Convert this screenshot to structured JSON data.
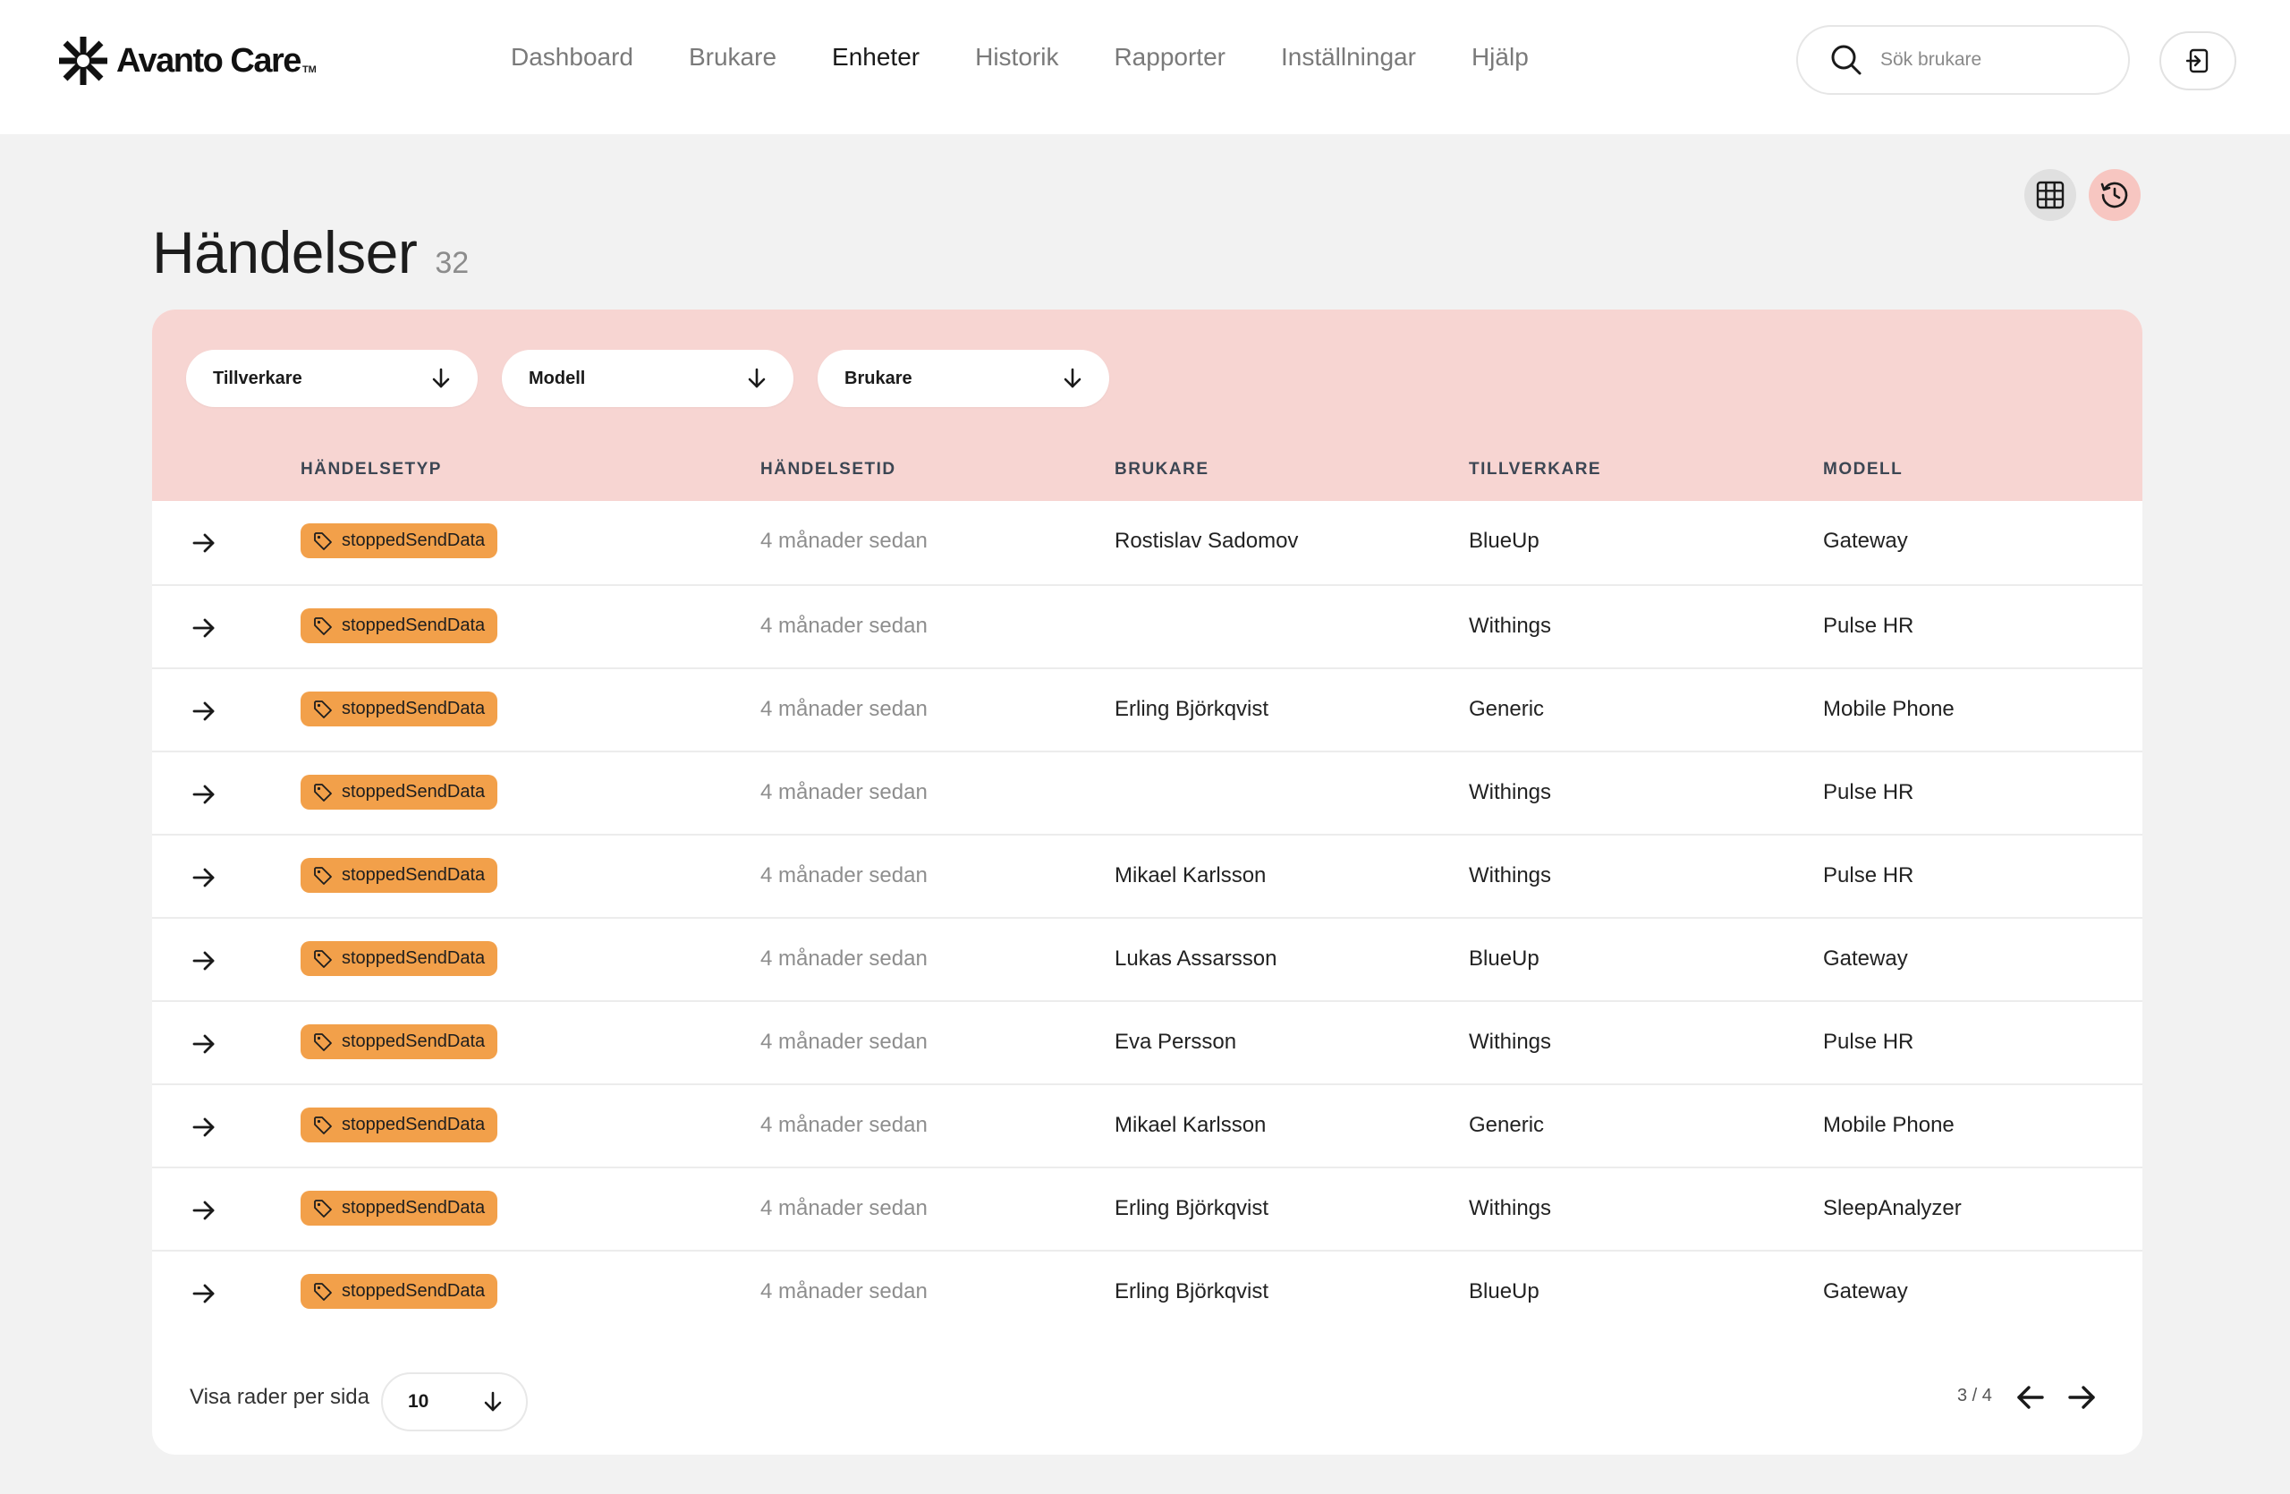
{
  "brand": {
    "name": "Avanto Care",
    "tm": "TM"
  },
  "nav": [
    {
      "label": "Dashboard",
      "active": false
    },
    {
      "label": "Brukare",
      "active": false
    },
    {
      "label": "Enheter",
      "active": true
    },
    {
      "label": "Historik",
      "active": false
    },
    {
      "label": "Rapporter",
      "active": false
    },
    {
      "label": "Inställningar",
      "active": false
    },
    {
      "label": "Hjälp",
      "active": false
    }
  ],
  "search": {
    "placeholder": "Sök brukare",
    "value": ""
  },
  "page": {
    "title": "Händelser",
    "count": "32"
  },
  "filters": [
    {
      "label": "Tillverkare"
    },
    {
      "label": "Modell"
    },
    {
      "label": "Brukare"
    }
  ],
  "columns": [
    "HÄNDELSETYP",
    "HÄNDELSETID",
    "BRUKARE",
    "TILLVERKARE",
    "MODELL"
  ],
  "rows": [
    {
      "type": "stoppedSendData",
      "time": "4 månader sedan",
      "user": "Rostislav Sadomov",
      "manufacturer": "BlueUp",
      "model": "Gateway"
    },
    {
      "type": "stoppedSendData",
      "time": "4 månader sedan",
      "user": "",
      "manufacturer": "Withings",
      "model": "Pulse HR"
    },
    {
      "type": "stoppedSendData",
      "time": "4 månader sedan",
      "user": "Erling Björkqvist",
      "manufacturer": "Generic",
      "model": "Mobile Phone"
    },
    {
      "type": "stoppedSendData",
      "time": "4 månader sedan",
      "user": "",
      "manufacturer": "Withings",
      "model": "Pulse HR"
    },
    {
      "type": "stoppedSendData",
      "time": "4 månader sedan",
      "user": "Mikael Karlsson",
      "manufacturer": "Withings",
      "model": "Pulse HR"
    },
    {
      "type": "stoppedSendData",
      "time": "4 månader sedan",
      "user": "Lukas Assarsson",
      "manufacturer": "BlueUp",
      "model": "Gateway"
    },
    {
      "type": "stoppedSendData",
      "time": "4 månader sedan",
      "user": "Eva Persson",
      "manufacturer": "Withings",
      "model": "Pulse HR"
    },
    {
      "type": "stoppedSendData",
      "time": "4 månader sedan",
      "user": "Mikael Karlsson",
      "manufacturer": "Generic",
      "model": "Mobile Phone"
    },
    {
      "type": "stoppedSendData",
      "time": "4 månader sedan",
      "user": "Erling Björkqvist",
      "manufacturer": "Withings",
      "model": "SleepAnalyzer"
    },
    {
      "type": "stoppedSendData",
      "time": "4 månader sedan",
      "user": "Erling Björkqvist",
      "manufacturer": "BlueUp",
      "model": "Gateway"
    }
  ],
  "footer": {
    "rows_per_page_label": "Visa rader per sida",
    "rows_per_page": "10",
    "pagination": "3 / 4"
  },
  "icons": {
    "logo": "asterisk-logo-icon",
    "search": "search-icon",
    "logout": "logout-icon",
    "grid": "grid-icon",
    "history": "history-icon",
    "row": "arrow-right-icon",
    "tag": "tag-icon",
    "dropdown": "arrow-down-icon"
  },
  "colors": {
    "accent_bg": "#f7d5d2",
    "badge": "#f2a04a",
    "history_btn": "#f7c6c1",
    "page_bg": "#f2f2f2"
  }
}
